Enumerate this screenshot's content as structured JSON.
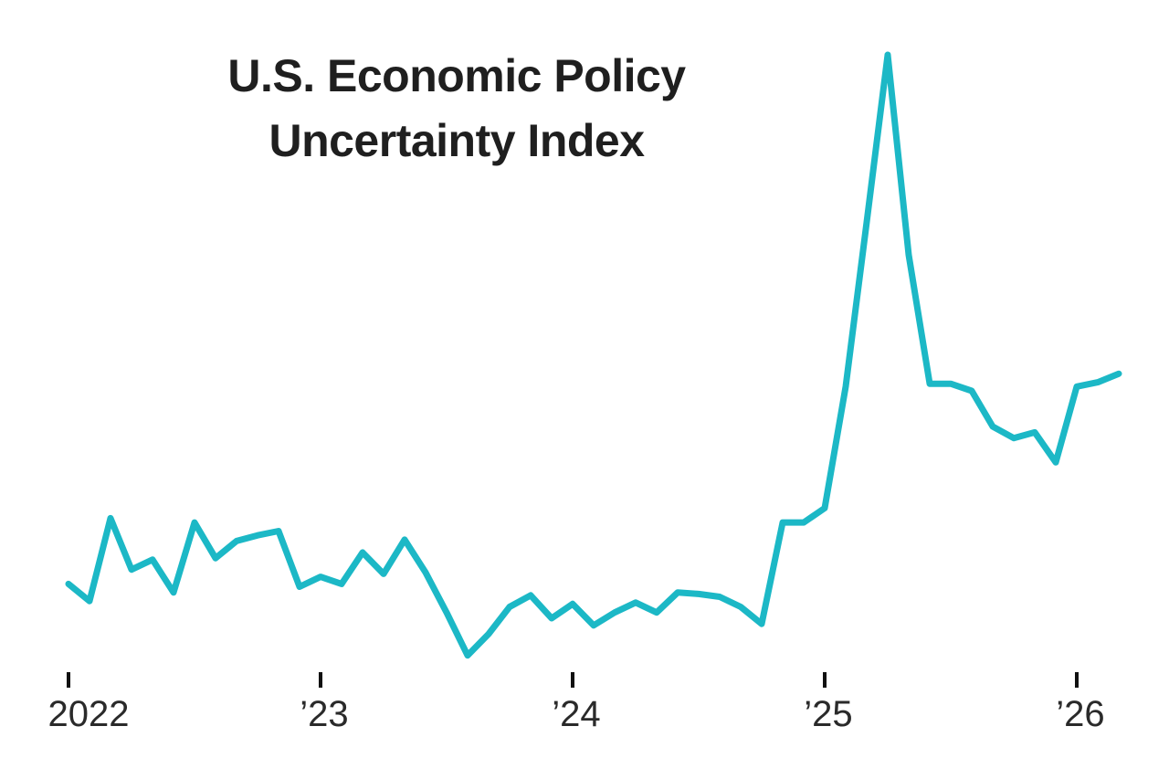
{
  "title": "U.S. Economic Policy Uncertainty Index",
  "colors": {
    "line": "#1CB8C6",
    "title": "#1f1f1f",
    "axis_label": "#2a2a2a",
    "tick_mark": "#111111",
    "background": "#ffffff"
  },
  "chart_data": {
    "type": "line",
    "title": "U.S. Economic Policy Uncertainty Index",
    "series_name": "Economic Policy Uncertainty Index",
    "x_frequency": "monthly",
    "x_start": "2022-01",
    "x_end": "2026-03",
    "values": [
      150,
      138,
      196,
      160,
      167,
      144,
      193,
      168,
      180,
      184,
      187,
      148,
      155,
      150,
      172,
      157,
      181,
      158,
      130,
      100,
      115,
      134,
      142,
      126,
      136,
      121,
      130,
      137,
      130,
      144,
      143,
      141,
      134,
      122,
      193,
      193,
      203,
      288,
      403,
      520,
      380,
      290,
      290,
      285,
      260,
      252,
      256,
      235,
      288,
      291,
      297
    ],
    "x_tick_labels": [
      "2022",
      "’23",
      "’24",
      "’25",
      "’26"
    ],
    "x_tick_indices": [
      0,
      12,
      24,
      36,
      48
    ],
    "ylim": [
      50,
      550
    ],
    "y_axis_visible": false,
    "x_axis_line_visible": false,
    "grid": false,
    "legend": false
  }
}
